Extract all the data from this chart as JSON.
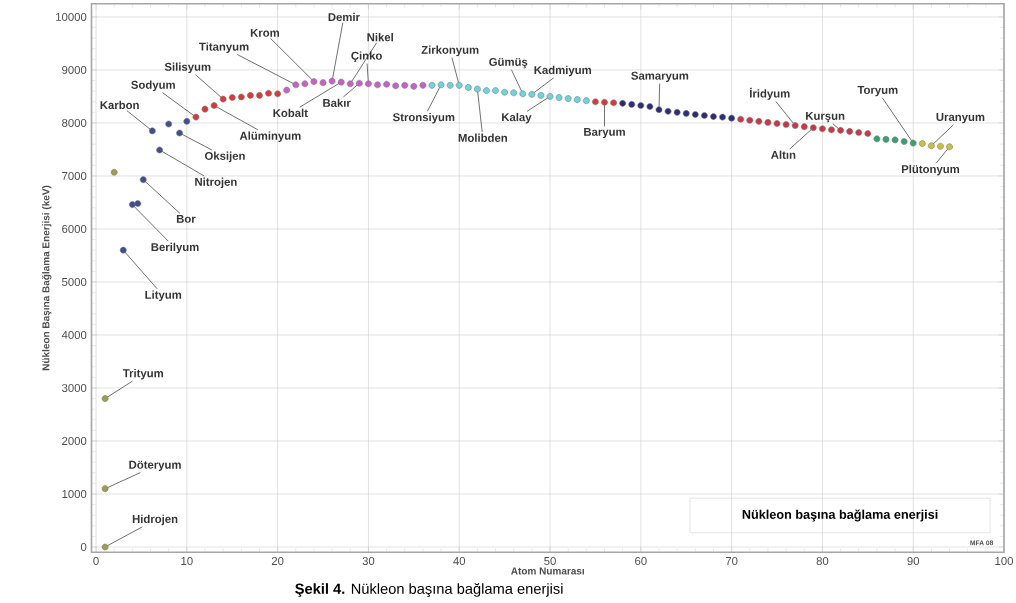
{
  "chart_data": {
    "type": "scatter",
    "title": "Nükleon başına bağlama enerjisi",
    "xlabel": "Atom Numarası",
    "ylabel": "Nükleon Başına Bağlama Enerjisi (keV)",
    "xlim": [
      -0.5,
      100
    ],
    "ylim": [
      -100,
      10250
    ],
    "xticks": [
      0,
      10,
      20,
      30,
      40,
      50,
      60,
      70,
      80,
      90,
      100
    ],
    "yticks": [
      0,
      1000,
      2000,
      3000,
      4000,
      5000,
      6000,
      7000,
      8000,
      9000,
      10000
    ],
    "grid": true,
    "marker": "circle",
    "series": [
      {
        "color": "#9aa04a",
        "x": [
          1,
          1,
          1,
          2
        ],
        "values": [
          0,
          1100,
          2800,
          7070
        ]
      },
      {
        "color": "#3f4f8f",
        "x": [
          3,
          4,
          4.6,
          5.2,
          6.2,
          7,
          8,
          9.2,
          10
        ],
        "values": [
          5600,
          6460,
          6480,
          6930,
          7850,
          7490,
          7980,
          7810,
          8030
        ]
      },
      {
        "color": "#d83a3a",
        "x": [
          11,
          12,
          13,
          14,
          15,
          16,
          17,
          18,
          19,
          20
        ],
        "values": [
          8110,
          8260,
          8330,
          8450,
          8480,
          8490,
          8520,
          8520,
          8560,
          8550
        ]
      },
      {
        "color": "#c860c8",
        "x": [
          21,
          22,
          23,
          24,
          25,
          26,
          27,
          28,
          29,
          30,
          31,
          32,
          33,
          34,
          35,
          36
        ],
        "values": [
          8620,
          8720,
          8740,
          8780,
          8760,
          8790,
          8770,
          8740,
          8750,
          8740,
          8720,
          8730,
          8700,
          8710,
          8690,
          8710
        ]
      },
      {
        "color": "#6cd4dc",
        "x": [
          37,
          38,
          39,
          40,
          41,
          42,
          43,
          44,
          45,
          46,
          47,
          48,
          49,
          50,
          51,
          52,
          53,
          54
        ],
        "values": [
          8710,
          8720,
          8710,
          8710,
          8670,
          8640,
          8610,
          8610,
          8580,
          8570,
          8550,
          8540,
          8520,
          8500,
          8480,
          8460,
          8440,
          8420
        ]
      },
      {
        "color": "#d83a3a",
        "x": [
          55,
          56,
          57
        ],
        "values": [
          8400,
          8390,
          8380
        ]
      },
      {
        "color": "#2e2e78",
        "x": [
          58,
          59,
          60,
          61,
          62,
          63,
          64,
          65,
          66,
          67,
          68,
          69,
          70
        ],
        "values": [
          8370,
          8350,
          8330,
          8310,
          8250,
          8220,
          8200,
          8180,
          8160,
          8140,
          8120,
          8110,
          8090
        ]
      },
      {
        "color": "#c83848",
        "x": [
          71,
          72,
          73,
          74,
          75,
          76,
          77,
          78,
          79,
          80,
          81,
          82,
          83,
          84,
          85
        ],
        "values": [
          8070,
          8050,
          8030,
          8010,
          7990,
          7970,
          7950,
          7930,
          7910,
          7890,
          7870,
          7860,
          7840,
          7820,
          7800
        ]
      },
      {
        "color": "#3aa070",
        "x": [
          86,
          87,
          88,
          89,
          90
        ],
        "values": [
          7700,
          7690,
          7680,
          7650,
          7620
        ]
      },
      {
        "color": "#c8c040",
        "x": [
          91,
          92,
          93,
          94
        ],
        "values": [
          7610,
          7570,
          7560,
          7550
        ]
      }
    ],
    "annotations": [
      {
        "text": "Hidrojen",
        "x": 1,
        "y": 0
      },
      {
        "text": "Döteryum",
        "x": 1,
        "y": 1100
      },
      {
        "text": "Trityum",
        "x": 1,
        "y": 2800
      },
      {
        "text": "Lityum",
        "x": 3,
        "y": 5600
      },
      {
        "text": "Berilyum",
        "x": 4,
        "y": 6460
      },
      {
        "text": "Bor",
        "x": 5.2,
        "y": 6930
      },
      {
        "text": "Nitrojen",
        "x": 7,
        "y": 7490
      },
      {
        "text": "Oksijen",
        "x": 9.2,
        "y": 7810
      },
      {
        "text": "Alüminyum",
        "x": 13,
        "y": 8330
      },
      {
        "text": "Karbon",
        "x": 6.2,
        "y": 7850
      },
      {
        "text": "Sodyum",
        "x": 11,
        "y": 8110
      },
      {
        "text": "Silisyum",
        "x": 14,
        "y": 8450
      },
      {
        "text": "Titanyum",
        "x": 22,
        "y": 8720
      },
      {
        "text": "Krom",
        "x": 24,
        "y": 8780
      },
      {
        "text": "Kobalt",
        "x": 27,
        "y": 8770
      },
      {
        "text": "Demir",
        "x": 26,
        "y": 8790
      },
      {
        "text": "Nikel",
        "x": 28,
        "y": 8740
      },
      {
        "text": "Çinko",
        "x": 30,
        "y": 8740
      },
      {
        "text": "Bakır",
        "x": 29,
        "y": 8750
      },
      {
        "text": "Zirkonyum",
        "x": 40,
        "y": 8710
      },
      {
        "text": "Stronsiyum",
        "x": 38,
        "y": 8720
      },
      {
        "text": "Molibden",
        "x": 42,
        "y": 8640
      },
      {
        "text": "Gümüş",
        "x": 47,
        "y": 8550
      },
      {
        "text": "Kadmiyum",
        "x": 48,
        "y": 8540
      },
      {
        "text": "Kalay",
        "x": 50,
        "y": 8500
      },
      {
        "text": "Baryum",
        "x": 56,
        "y": 8390
      },
      {
        "text": "Samaryum",
        "x": 62,
        "y": 8250
      },
      {
        "text": "İridyum",
        "x": 77,
        "y": 7950
      },
      {
        "text": "Altın",
        "x": 79,
        "y": 7910
      },
      {
        "text": "Kurşun",
        "x": 82,
        "y": 7860
      },
      {
        "text": "Toryum",
        "x": 90,
        "y": 7620
      },
      {
        "text": "Uranyum",
        "x": 92,
        "y": 7570
      },
      {
        "text": "Plütonyum",
        "x": 94,
        "y": 7550
      },
      "**Şekil 4.** Nükleon başına bağlama enerjisi",
      "MFA 08"
    ]
  }
}
